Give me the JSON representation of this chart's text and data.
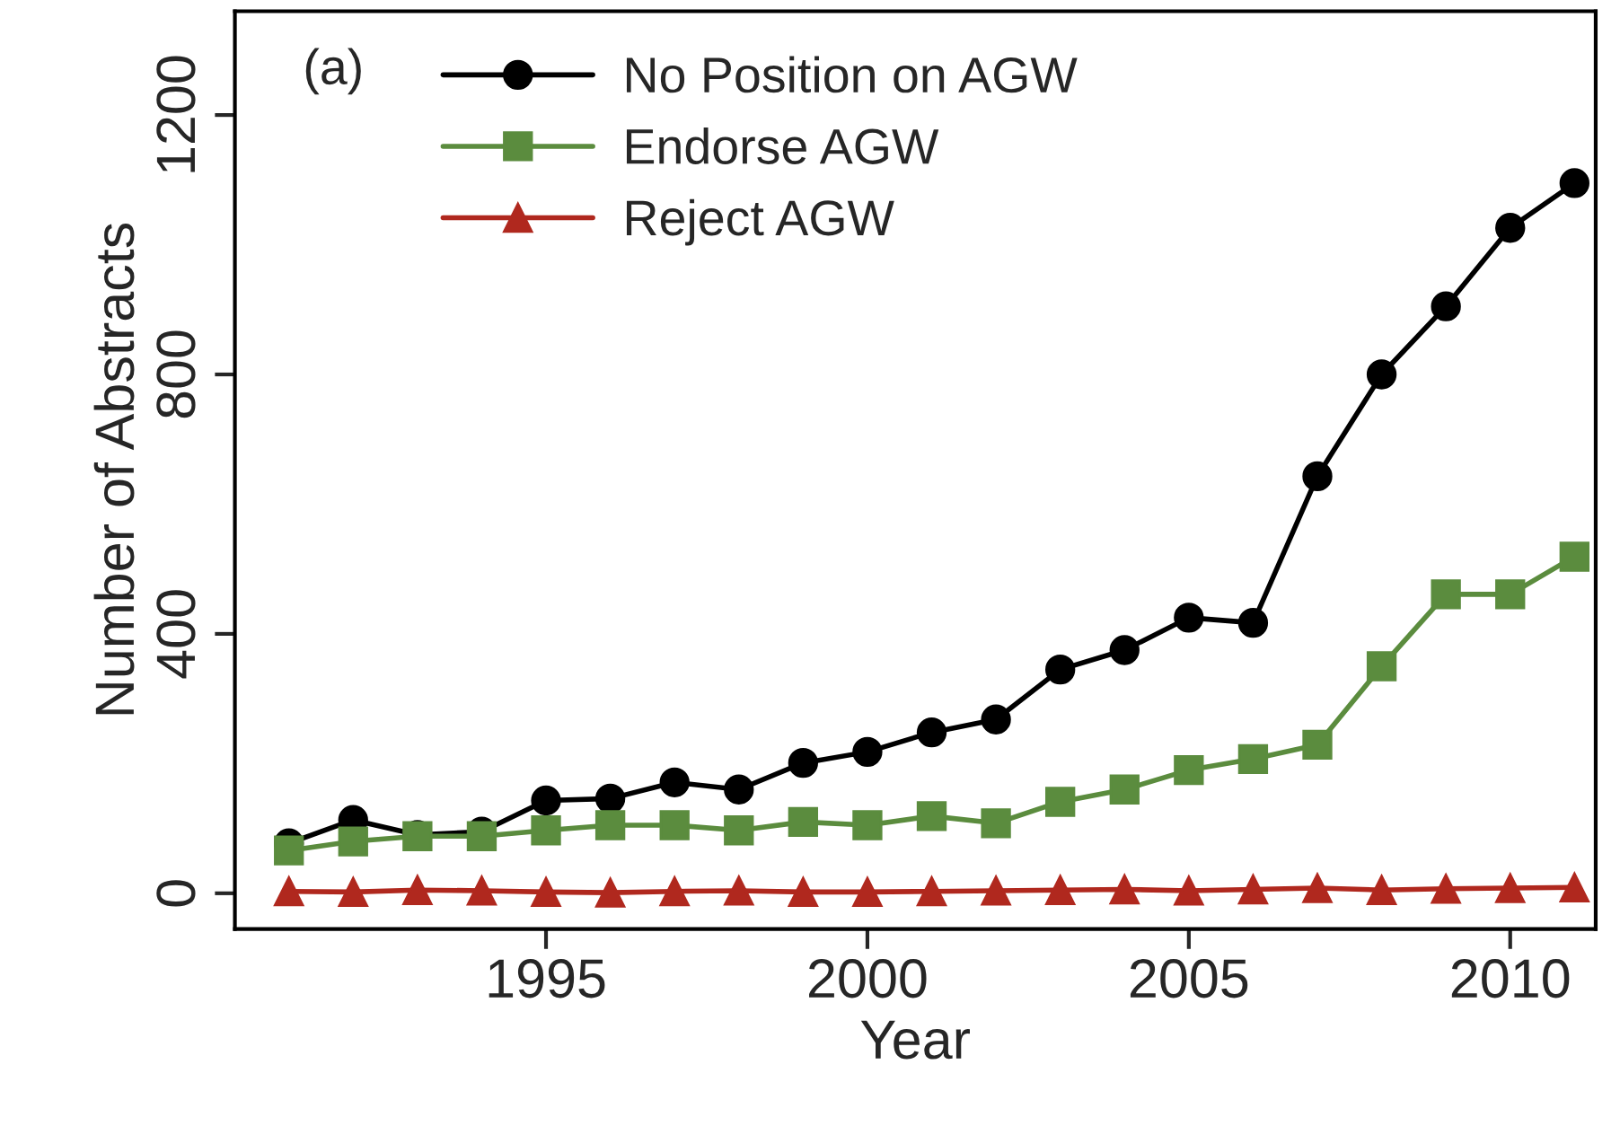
{
  "chart_data": {
    "type": "line",
    "xlabel": "Year",
    "ylabel": "Number of Abstracts",
    "annotations": [
      "(a)"
    ],
    "x": [
      1991,
      1992,
      1993,
      1994,
      1995,
      1996,
      1997,
      1998,
      1999,
      2000,
      2001,
      2002,
      2003,
      2004,
      2005,
      2006,
      2007,
      2008,
      2009,
      2010,
      2011
    ],
    "series": [
      {
        "name": "No Position on AGW",
        "color": "#000000",
        "marker": "circle",
        "values": [
          77,
          113,
          90,
          95,
          143,
          146,
          171,
          160,
          201,
          218,
          248,
          268,
          345,
          375,
          425,
          417,
          643,
          800,
          905,
          1026,
          1095
        ]
      },
      {
        "name": "Endorse AGW",
        "color": "#5b8c3e",
        "marker": "square",
        "values": [
          66,
          80,
          88,
          88,
          97,
          105,
          105,
          97,
          110,
          105,
          119,
          108,
          141,
          160,
          190,
          207,
          229,
          350,
          461,
          461,
          519
        ]
      },
      {
        "name": "Reject AGW",
        "color": "#b0281e",
        "marker": "triangle",
        "values": [
          3,
          2,
          5,
          4,
          2,
          1,
          3,
          4,
          2,
          2,
          3,
          4,
          5,
          6,
          4,
          6,
          8,
          5,
          7,
          8,
          9
        ]
      }
    ],
    "xlim": [
      1990.16,
      2011.33
    ],
    "ylim": [
      -55,
      1360
    ],
    "xticks": [
      1995,
      2000,
      2005,
      2010
    ],
    "yticks": [
      0,
      400,
      800,
      1200
    ],
    "grid": false,
    "legend": "top left",
    "line_style": "solid"
  }
}
